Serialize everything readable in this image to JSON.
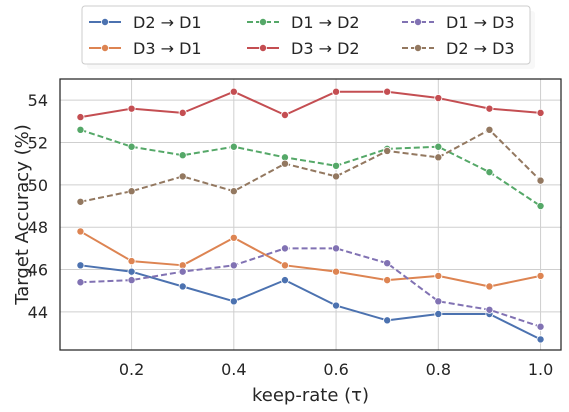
{
  "chart_data": {
    "type": "line",
    "xlabel": "keep-rate (τ)",
    "ylabel": "Target Accuracy (%)",
    "xlim": [
      0.06,
      1.04
    ],
    "ylim": [
      42.2,
      55.0
    ],
    "xticks": [
      0.2,
      0.4,
      0.6,
      0.8,
      1.0
    ],
    "xtick_labels": [
      "0.2",
      "0.4",
      "0.6",
      "0.8",
      "1.0"
    ],
    "yticks": [
      44,
      46,
      48,
      50,
      52,
      54
    ],
    "ytick_labels": [
      "44",
      "46",
      "48",
      "50",
      "52",
      "54"
    ],
    "grid": true,
    "legend_position": "top-center",
    "x": [
      0.1,
      0.2,
      0.3,
      0.4,
      0.5,
      0.6,
      0.7,
      0.8,
      0.9,
      1.0
    ],
    "series": [
      {
        "name": "D2 → D1",
        "color": "#4c72b0",
        "dashed": false,
        "values": [
          46.2,
          45.9,
          45.2,
          44.5,
          45.5,
          44.3,
          43.6,
          43.9,
          43.9,
          42.7
        ]
      },
      {
        "name": "D3 → D1",
        "color": "#dd8452",
        "dashed": false,
        "values": [
          47.8,
          46.4,
          46.2,
          47.5,
          46.2,
          45.9,
          45.5,
          45.7,
          45.2,
          45.7
        ]
      },
      {
        "name": "D1 → D2",
        "color": "#55a868",
        "dashed": true,
        "values": [
          52.6,
          51.8,
          51.4,
          51.8,
          51.3,
          50.9,
          51.7,
          51.8,
          50.6,
          49.0
        ]
      },
      {
        "name": "D3 → D2",
        "color": "#c44e52",
        "dashed": false,
        "values": [
          53.2,
          53.6,
          53.4,
          54.4,
          53.3,
          54.4,
          54.4,
          54.1,
          53.6,
          53.4
        ]
      },
      {
        "name": "D1 → D3",
        "color": "#8172b3",
        "dashed": true,
        "values": [
          45.4,
          45.5,
          45.9,
          46.2,
          47.0,
          47.0,
          46.3,
          44.5,
          44.1,
          43.3
        ]
      },
      {
        "name": "D2 → D3",
        "color": "#937860",
        "dashed": true,
        "values": [
          49.2,
          49.7,
          50.4,
          49.7,
          51.0,
          50.4,
          51.6,
          51.3,
          52.6,
          50.2
        ]
      }
    ]
  }
}
